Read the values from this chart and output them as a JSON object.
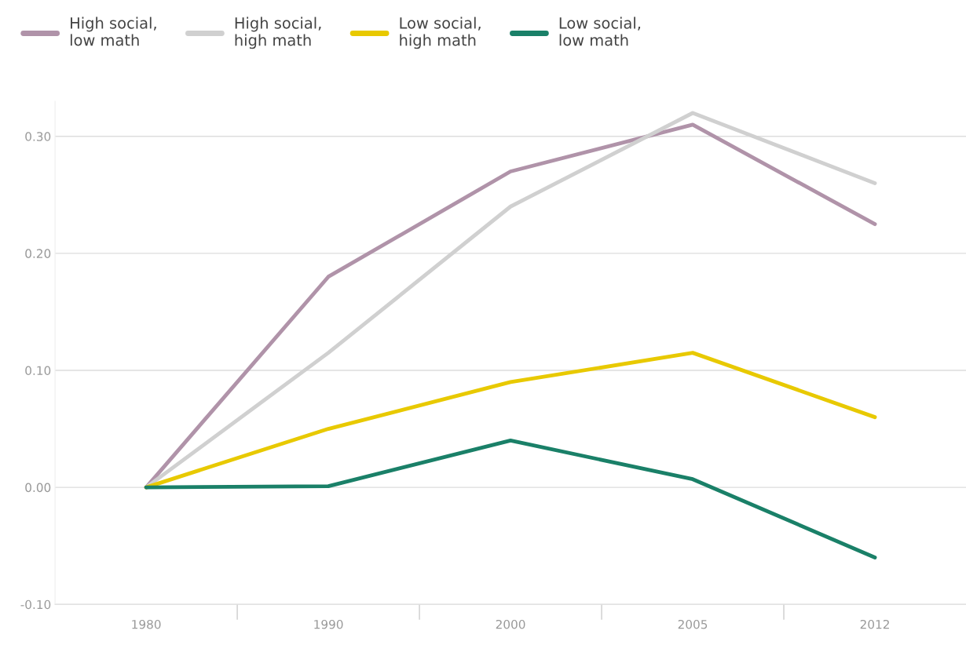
{
  "chart_data": {
    "type": "line",
    "categories": [
      "1980",
      "1990",
      "2000",
      "2005",
      "2012"
    ],
    "series": [
      {
        "name": "High social,\nlow math",
        "color": "#b093a9",
        "values": [
          0,
          0.18,
          0.27,
          0.31,
          0.225
        ]
      },
      {
        "name": "High social,\nhigh math",
        "color": "#d0d0d0",
        "values": [
          0,
          0.115,
          0.24,
          0.32,
          0.26
        ]
      },
      {
        "name": "Low social,\nhigh math",
        "color": "#e8c900",
        "values": [
          0,
          0.05,
          0.09,
          0.115,
          0.06
        ]
      },
      {
        "name": "Low social,\nlow math",
        "color": "#1a8068",
        "values": [
          0,
          0.001,
          0.04,
          0.007,
          -0.06
        ]
      }
    ],
    "ylim": [
      -0.1,
      0.33
    ],
    "yticks": [
      {
        "value": -0.1,
        "label": "-0.10"
      },
      {
        "value": 0,
        "label": "0.00"
      },
      {
        "value": 0.1,
        "label": "0.10"
      },
      {
        "value": 0.2,
        "label": "0.20"
      },
      {
        "value": 0.3,
        "label": "0.30"
      }
    ],
    "grid": "y",
    "legend": "top left",
    "marker": "none",
    "line_style": "solid"
  }
}
